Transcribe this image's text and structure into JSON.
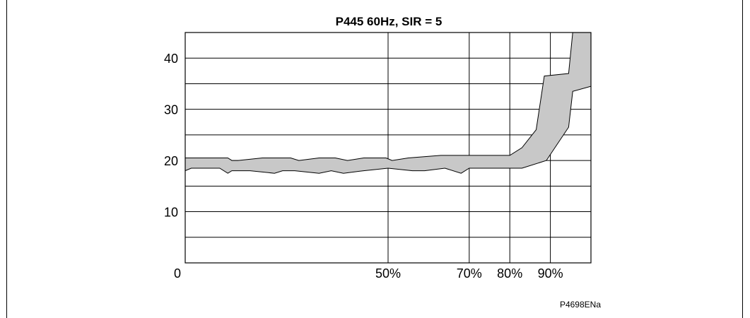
{
  "figure_id": "P4698ENa",
  "chart_data": {
    "type": "area",
    "title": "P445  60Hz,  SIR = 5",
    "xlabel": "",
    "ylabel": "",
    "xlim": [
      0,
      100
    ],
    "ylim": [
      0,
      45
    ],
    "y_ticks": [
      {
        "value": 10,
        "label": "10"
      },
      {
        "value": 20,
        "label": "20"
      },
      {
        "value": 30,
        "label": "30"
      },
      {
        "value": 40,
        "label": "40"
      }
    ],
    "y_gridlines": [
      5,
      10,
      15,
      20,
      25,
      30,
      35,
      40,
      45
    ],
    "x_origin_label": "0",
    "x_ticks": [
      {
        "value": 50,
        "label": "50%"
      },
      {
        "value": 70,
        "label": "70%"
      },
      {
        "value": 80,
        "label": "80%"
      },
      {
        "value": 90,
        "label": "90%"
      }
    ],
    "x_gridlines": [
      50,
      70,
      80,
      90
    ],
    "grid": true,
    "fill_color": "#c8c8c8",
    "line_color": "#000000",
    "series": [
      {
        "x": [
          0,
          1.5,
          10.5,
          11.5,
          13,
          19,
          26,
          28,
          33,
          37,
          40,
          44,
          49.5,
          51,
          55,
          63,
          70,
          80,
          83,
          86.5,
          88.5,
          94.5,
          95.5,
          98.5,
          100
        ],
        "values": [
          20.5,
          20.5,
          20.5,
          20,
          20,
          20.5,
          20.5,
          20,
          20.5,
          20.5,
          20,
          20.5,
          20.5,
          20,
          20.5,
          21,
          21,
          21,
          22.5,
          26,
          36.5,
          37,
          45,
          45,
          45
        ]
      },
      {
        "x": [
          0,
          1.5,
          8.5,
          10.5,
          11.5,
          16,
          22,
          24,
          27,
          33,
          36,
          39,
          44,
          50,
          56,
          59,
          64,
          68,
          70,
          78,
          83,
          89,
          94.5,
          95.5,
          100
        ],
        "values": [
          18,
          18.5,
          18.5,
          17.5,
          18,
          18,
          17.5,
          18,
          18,
          17.5,
          18,
          17.5,
          18,
          18.5,
          18,
          18,
          18.5,
          17.5,
          18.5,
          18.5,
          18.5,
          20,
          26.5,
          33.5,
          34.5
        ]
      }
    ]
  }
}
